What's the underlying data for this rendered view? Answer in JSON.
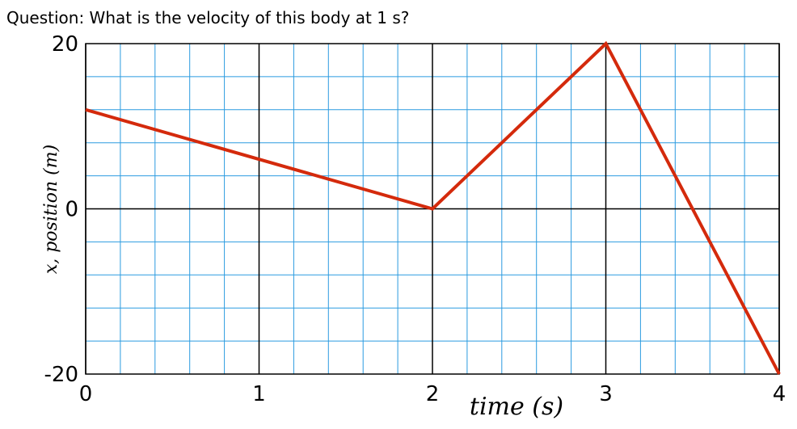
{
  "question": "Question: What is the velocity of this body at 1 s?",
  "chart_data": {
    "type": "line",
    "xlabel": "time (s)",
    "ylabel": "x, position (m)",
    "xlim": [
      0,
      4
    ],
    "ylim": [
      -20,
      20
    ],
    "x_ticks": [
      "0",
      "1",
      "2",
      "3",
      "4"
    ],
    "y_ticks": [
      "20",
      "0",
      "-20"
    ],
    "grid": true,
    "colors": {
      "line": "#d42a0c",
      "grid": "#2b9be0",
      "major": "#000000"
    },
    "series": [
      {
        "x": [
          0,
          2,
          3,
          4
        ],
        "values": [
          12,
          0,
          20,
          -20
        ]
      }
    ]
  }
}
